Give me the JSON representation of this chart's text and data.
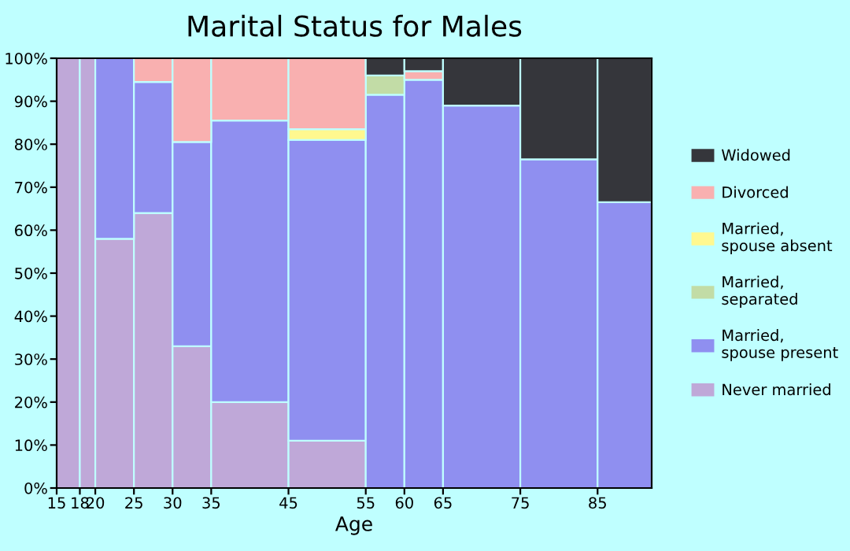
{
  "chart_data": {
    "type": "bar",
    "stacked": true,
    "title": "Marital Status for Males",
    "xlabel": "Age",
    "x": [
      16.5,
      19,
      22.5,
      27.5,
      32.5,
      40,
      50,
      57.5,
      62.5,
      70,
      80,
      88.5
    ],
    "xlim": [
      15,
      92
    ],
    "xticks": [
      15,
      18,
      20,
      25,
      30,
      35,
      45,
      55,
      60,
      65,
      75,
      85
    ],
    "ylim": [
      0,
      100
    ],
    "yticks": [
      {
        "value": 0,
        "label": "0%"
      },
      {
        "value": 10,
        "label": "10%"
      },
      {
        "value": 20,
        "label": "20%"
      },
      {
        "value": 30,
        "label": "30%"
      },
      {
        "value": 40,
        "label": "40%"
      },
      {
        "value": 50,
        "label": "50%"
      },
      {
        "value": 60,
        "label": "60%"
      },
      {
        "value": 70,
        "label": "70%"
      },
      {
        "value": 80,
        "label": "80%"
      },
      {
        "value": 90,
        "label": "90%"
      },
      {
        "value": 100,
        "label": "100%"
      }
    ],
    "grid": false,
    "legend": "right",
    "series": [
      {
        "name": "Never married",
        "color": "#bfa8d8",
        "values": [
          100,
          100,
          58,
          64,
          33,
          20,
          11,
          null,
          null,
          null,
          null,
          null
        ]
      },
      {
        "name": "Married, spouse present",
        "color": "#8f8ff0",
        "values": [
          null,
          null,
          42,
          30.5,
          47.5,
          65.5,
          70,
          91.5,
          95,
          89,
          76.5,
          66.5
        ]
      },
      {
        "name": "Married, separated",
        "color": "#c2dca6",
        "values": [
          null,
          null,
          null,
          null,
          null,
          null,
          null,
          4.5,
          null,
          null,
          null,
          null
        ]
      },
      {
        "name": "Married, spouse absent",
        "color": "#fff88f",
        "values": [
          null,
          null,
          null,
          null,
          null,
          null,
          2.5,
          null,
          null,
          null,
          null,
          null
        ]
      },
      {
        "name": "Divorced",
        "color": "#f9b0b0",
        "values": [
          null,
          null,
          null,
          5.5,
          19.5,
          14.5,
          16.5,
          null,
          2,
          null,
          null,
          null
        ]
      },
      {
        "name": "Widowed",
        "color": "#35363b",
        "values": [
          null,
          null,
          null,
          null,
          null,
          null,
          null,
          4,
          3,
          11,
          23.5,
          33.5
        ]
      }
    ]
  }
}
